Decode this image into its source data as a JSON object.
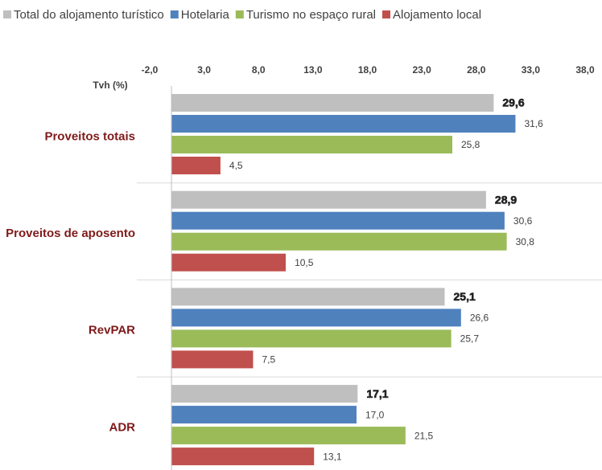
{
  "chart_data": {
    "type": "barh",
    "axis_label": "Tvh (%)",
    "categories": [
      "Proveitos totais",
      "Proveitos de aposento",
      "RevPAR",
      "ADR"
    ],
    "series": [
      {
        "name": "Total do alojamento turístico",
        "color": "#bfbfbf",
        "values": [
          29.6,
          28.9,
          25.1,
          17.1
        ],
        "value_labels": [
          "29,6",
          "28,9",
          "25,1",
          "17,1"
        ]
      },
      {
        "name": "Hotelaria",
        "color": "#4f81bd",
        "values": [
          31.6,
          30.6,
          26.6,
          17.0
        ],
        "value_labels": [
          "31,6",
          "30,6",
          "26,6",
          "17,0"
        ]
      },
      {
        "name": "Turismo no espaço rural",
        "color": "#9bbb59",
        "values": [
          25.8,
          30.8,
          25.7,
          21.5
        ],
        "value_labels": [
          "25,8",
          "30,8",
          "25,7",
          "21,5"
        ]
      },
      {
        "name": "Alojamento local",
        "color": "#c0504d",
        "values": [
          4.5,
          10.5,
          7.5,
          13.1
        ],
        "value_labels": [
          "4,5",
          "10,5",
          "7,5",
          "13,1"
        ]
      }
    ],
    "xlim": [
      -2,
      38
    ],
    "xticks": [
      {
        "value": -2,
        "label": "-2,0"
      },
      {
        "value": 3,
        "label": "3,0"
      },
      {
        "value": 8,
        "label": "8,0"
      },
      {
        "value": 13,
        "label": "13,0"
      },
      {
        "value": 18,
        "label": "18,0"
      },
      {
        "value": 23,
        "label": "23,0"
      },
      {
        "value": 28,
        "label": "28,0"
      },
      {
        "value": 33,
        "label": "33,0"
      },
      {
        "value": 38,
        "label": "38,0"
      }
    ],
    "legend": "top"
  }
}
